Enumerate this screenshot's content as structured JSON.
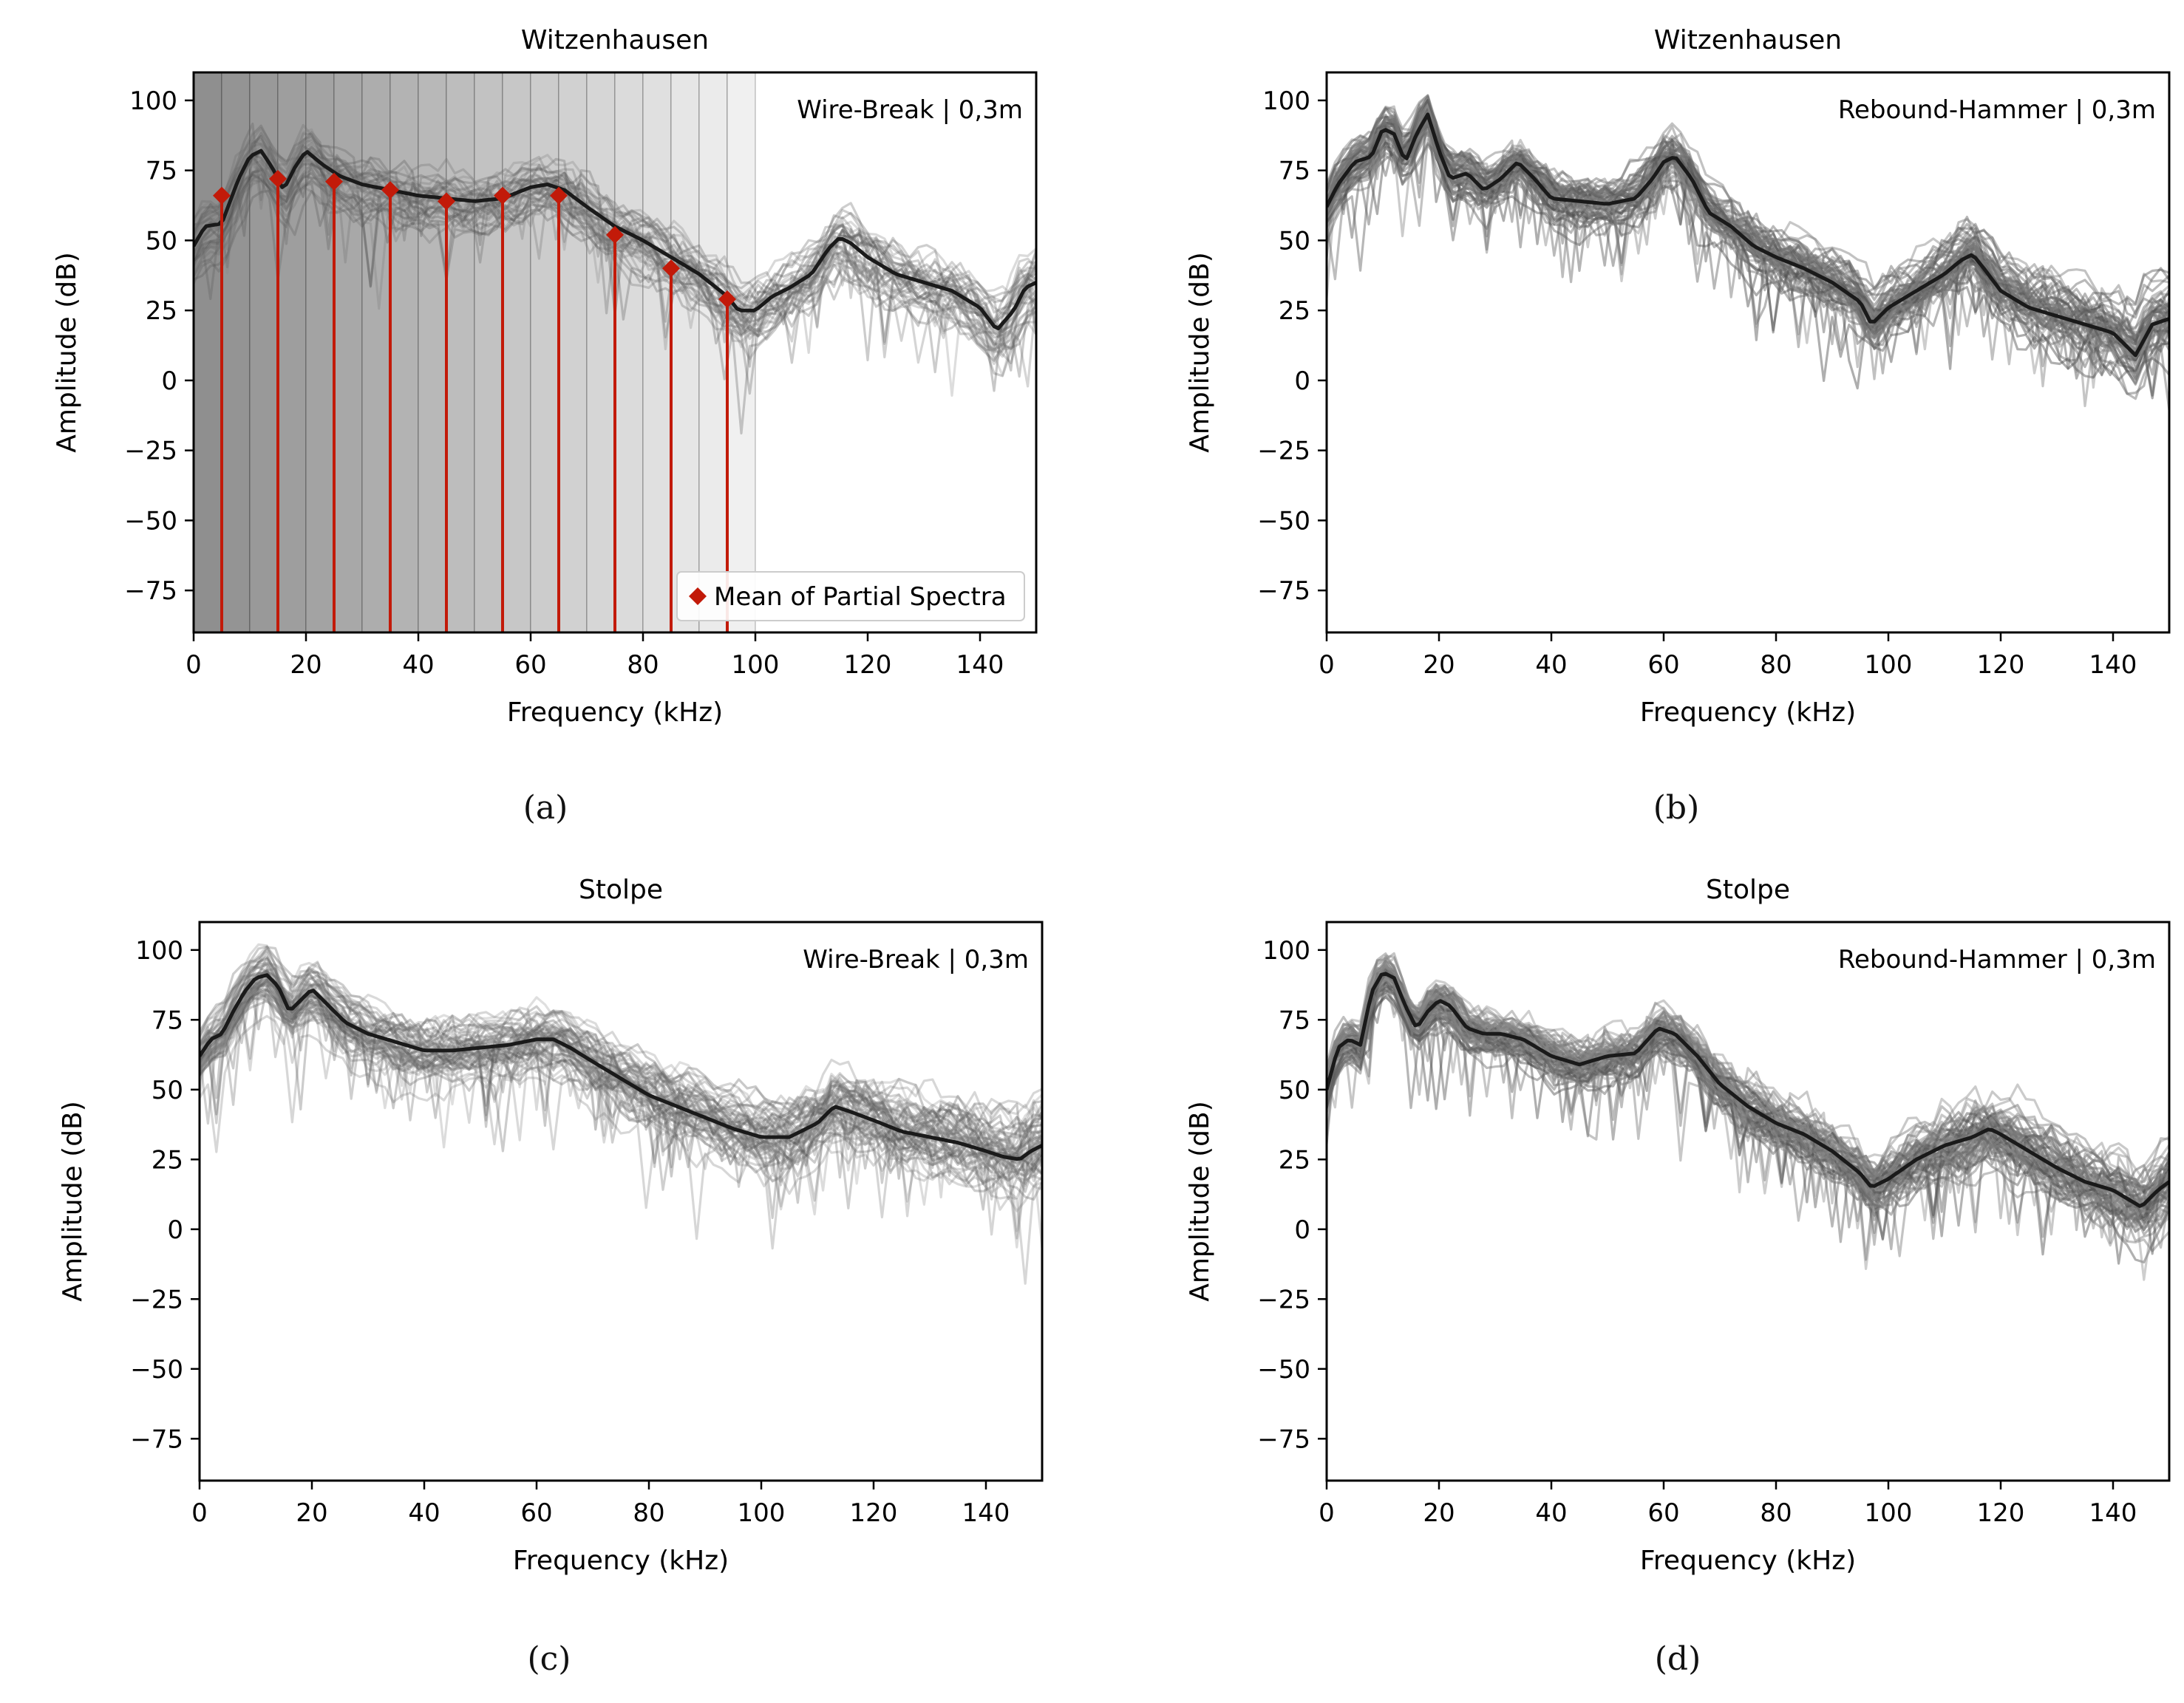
{
  "figure": {
    "captions": [
      "(a)",
      "(b)",
      "(c)",
      "(d)"
    ]
  },
  "chart_data": [
    {
      "type": "line",
      "title": "Witzenhausen",
      "annotation": "Wire-Break | 0,3m",
      "xlabel": "Frequency (kHz)",
      "ylabel": "Amplitude (dB)",
      "xlim": [
        0,
        150
      ],
      "ylim": [
        -90,
        110
      ],
      "xticks": [
        0,
        20,
        40,
        60,
        80,
        100,
        120,
        140
      ],
      "yticks": [
        100,
        75,
        50,
        25,
        0,
        -25,
        -50,
        -75
      ],
      "grid": false,
      "legend": {
        "placement": "lower-right",
        "entries": [
          "Mean of Partial Spectra"
        ]
      },
      "mean_curve": {
        "x": [
          0,
          2,
          5,
          8,
          10,
          12,
          14,
          16,
          18,
          20,
          23,
          26,
          30,
          35,
          40,
          45,
          50,
          55,
          60,
          63,
          66,
          70,
          75,
          80,
          85,
          90,
          95,
          97,
          100,
          103,
          106,
          110,
          113,
          115,
          117,
          120,
          125,
          130,
          135,
          140,
          143,
          146,
          148,
          150
        ],
        "y": [
          48,
          55,
          56,
          72,
          80,
          82,
          76,
          68,
          76,
          82,
          77,
          73,
          70,
          68,
          66,
          65,
          64,
          65,
          69,
          70,
          68,
          62,
          55,
          50,
          44,
          38,
          30,
          25,
          25,
          30,
          33,
          38,
          47,
          51,
          49,
          44,
          38,
          35,
          32,
          26,
          18,
          25,
          33,
          35
        ]
      },
      "band_shading": {
        "bins": [
          0,
          5,
          10,
          15,
          20,
          25,
          30,
          35,
          40,
          45,
          50,
          55,
          60,
          65,
          70,
          75,
          80,
          85,
          90,
          95,
          100
        ],
        "gray_levels": [
          0.56,
          0.58,
          0.6,
          0.62,
          0.64,
          0.66,
          0.68,
          0.7,
          0.72,
          0.74,
          0.76,
          0.78,
          0.8,
          0.82,
          0.84,
          0.86,
          0.88,
          0.9,
          0.92,
          0.94
        ]
      },
      "partial_spectra_means": {
        "x": [
          5,
          15,
          25,
          35,
          45,
          55,
          65,
          75,
          85,
          95
        ],
        "y": [
          66,
          72,
          71,
          68,
          64,
          66,
          66,
          52,
          40,
          29
        ]
      },
      "trace_count": 40,
      "trace_spread": 10,
      "trace_opacity": 0.3,
      "marker_color": "#c21a09"
    },
    {
      "type": "line",
      "title": "Witzenhausen",
      "annotation": "Rebound-Hammer | 0,3m",
      "xlabel": "Frequency (kHz)",
      "ylabel": "Amplitude (dB)",
      "xlim": [
        0,
        150
      ],
      "ylim": [
        -90,
        110
      ],
      "xticks": [
        0,
        20,
        40,
        60,
        80,
        100,
        120,
        140
      ],
      "yticks": [
        100,
        75,
        50,
        25,
        0,
        -25,
        -50,
        -75
      ],
      "grid": false,
      "mean_curve": {
        "x": [
          0,
          2,
          5,
          8,
          10,
          12,
          14,
          16,
          18,
          20,
          22,
          25,
          28,
          31,
          34,
          37,
          40,
          45,
          50,
          55,
          58,
          60,
          62,
          65,
          68,
          72,
          76,
          80,
          85,
          90,
          95,
          97,
          100,
          105,
          110,
          113,
          115,
          117,
          120,
          125,
          130,
          135,
          140,
          144,
          147,
          150
        ],
        "y": [
          62,
          70,
          78,
          80,
          90,
          88,
          78,
          88,
          95,
          82,
          72,
          74,
          68,
          72,
          78,
          72,
          65,
          64,
          63,
          65,
          72,
          78,
          80,
          72,
          60,
          55,
          48,
          44,
          40,
          35,
          28,
          20,
          26,
          32,
          38,
          43,
          45,
          40,
          32,
          26,
          23,
          20,
          17,
          9,
          20,
          22
        ]
      },
      "trace_count": 60,
      "trace_spread": 7,
      "trace_opacity": 0.45
    },
    {
      "type": "line",
      "title": "Stolpe",
      "annotation": "Wire-Break | 0,3m",
      "xlabel": "Frequency (kHz)",
      "ylabel": "Amplitude (dB)",
      "xlim": [
        0,
        150
      ],
      "ylim": [
        -90,
        110
      ],
      "xticks": [
        0,
        20,
        40,
        60,
        80,
        100,
        120,
        140
      ],
      "yticks": [
        100,
        75,
        50,
        25,
        0,
        -25,
        -50,
        -75
      ],
      "grid": false,
      "mean_curve": {
        "x": [
          0,
          2,
          4,
          6,
          8,
          10,
          12,
          14,
          16,
          18,
          20,
          23,
          26,
          30,
          35,
          40,
          45,
          50,
          55,
          60,
          63,
          66,
          70,
          75,
          80,
          85,
          90,
          95,
          100,
          105,
          110,
          113,
          116,
          120,
          125,
          130,
          135,
          140,
          143,
          146,
          148,
          150
        ],
        "y": [
          62,
          68,
          70,
          78,
          85,
          90,
          91,
          87,
          78,
          82,
          86,
          80,
          74,
          70,
          67,
          64,
          64,
          65,
          66,
          68,
          68,
          65,
          60,
          54,
          48,
          44,
          40,
          36,
          33,
          33,
          38,
          44,
          42,
          39,
          35,
          33,
          31,
          28,
          26,
          25,
          28,
          30
        ]
      },
      "trace_count": 60,
      "trace_spread": 11,
      "trace_opacity": 0.3
    },
    {
      "type": "line",
      "title": "Stolpe",
      "annotation": "Rebound-Hammer | 0,3m",
      "xlabel": "Frequency (kHz)",
      "ylabel": "Amplitude (dB)",
      "xlim": [
        0,
        150
      ],
      "ylim": [
        -90,
        110
      ],
      "xticks": [
        0,
        20,
        40,
        60,
        80,
        100,
        120,
        140
      ],
      "yticks": [
        100,
        75,
        50,
        25,
        0,
        -25,
        -50,
        -75
      ],
      "grid": false,
      "mean_curve": {
        "x": [
          0,
          2,
          4,
          6,
          8,
          10,
          12,
          14,
          16,
          18,
          20,
          22,
          25,
          28,
          31,
          35,
          40,
          45,
          50,
          55,
          59,
          62,
          66,
          70,
          75,
          80,
          85,
          90,
          95,
          97,
          100,
          105,
          110,
          115,
          118,
          120,
          125,
          130,
          135,
          140,
          145,
          148,
          150
        ],
        "y": [
          50,
          65,
          68,
          66,
          85,
          92,
          90,
          80,
          72,
          78,
          82,
          80,
          72,
          70,
          70,
          68,
          62,
          59,
          62,
          63,
          72,
          70,
          62,
          52,
          44,
          38,
          34,
          28,
          20,
          15,
          18,
          25,
          30,
          33,
          36,
          34,
          28,
          22,
          17,
          14,
          8,
          14,
          17
        ]
      },
      "trace_count": 70,
      "trace_spread": 7,
      "trace_opacity": 0.45
    }
  ]
}
